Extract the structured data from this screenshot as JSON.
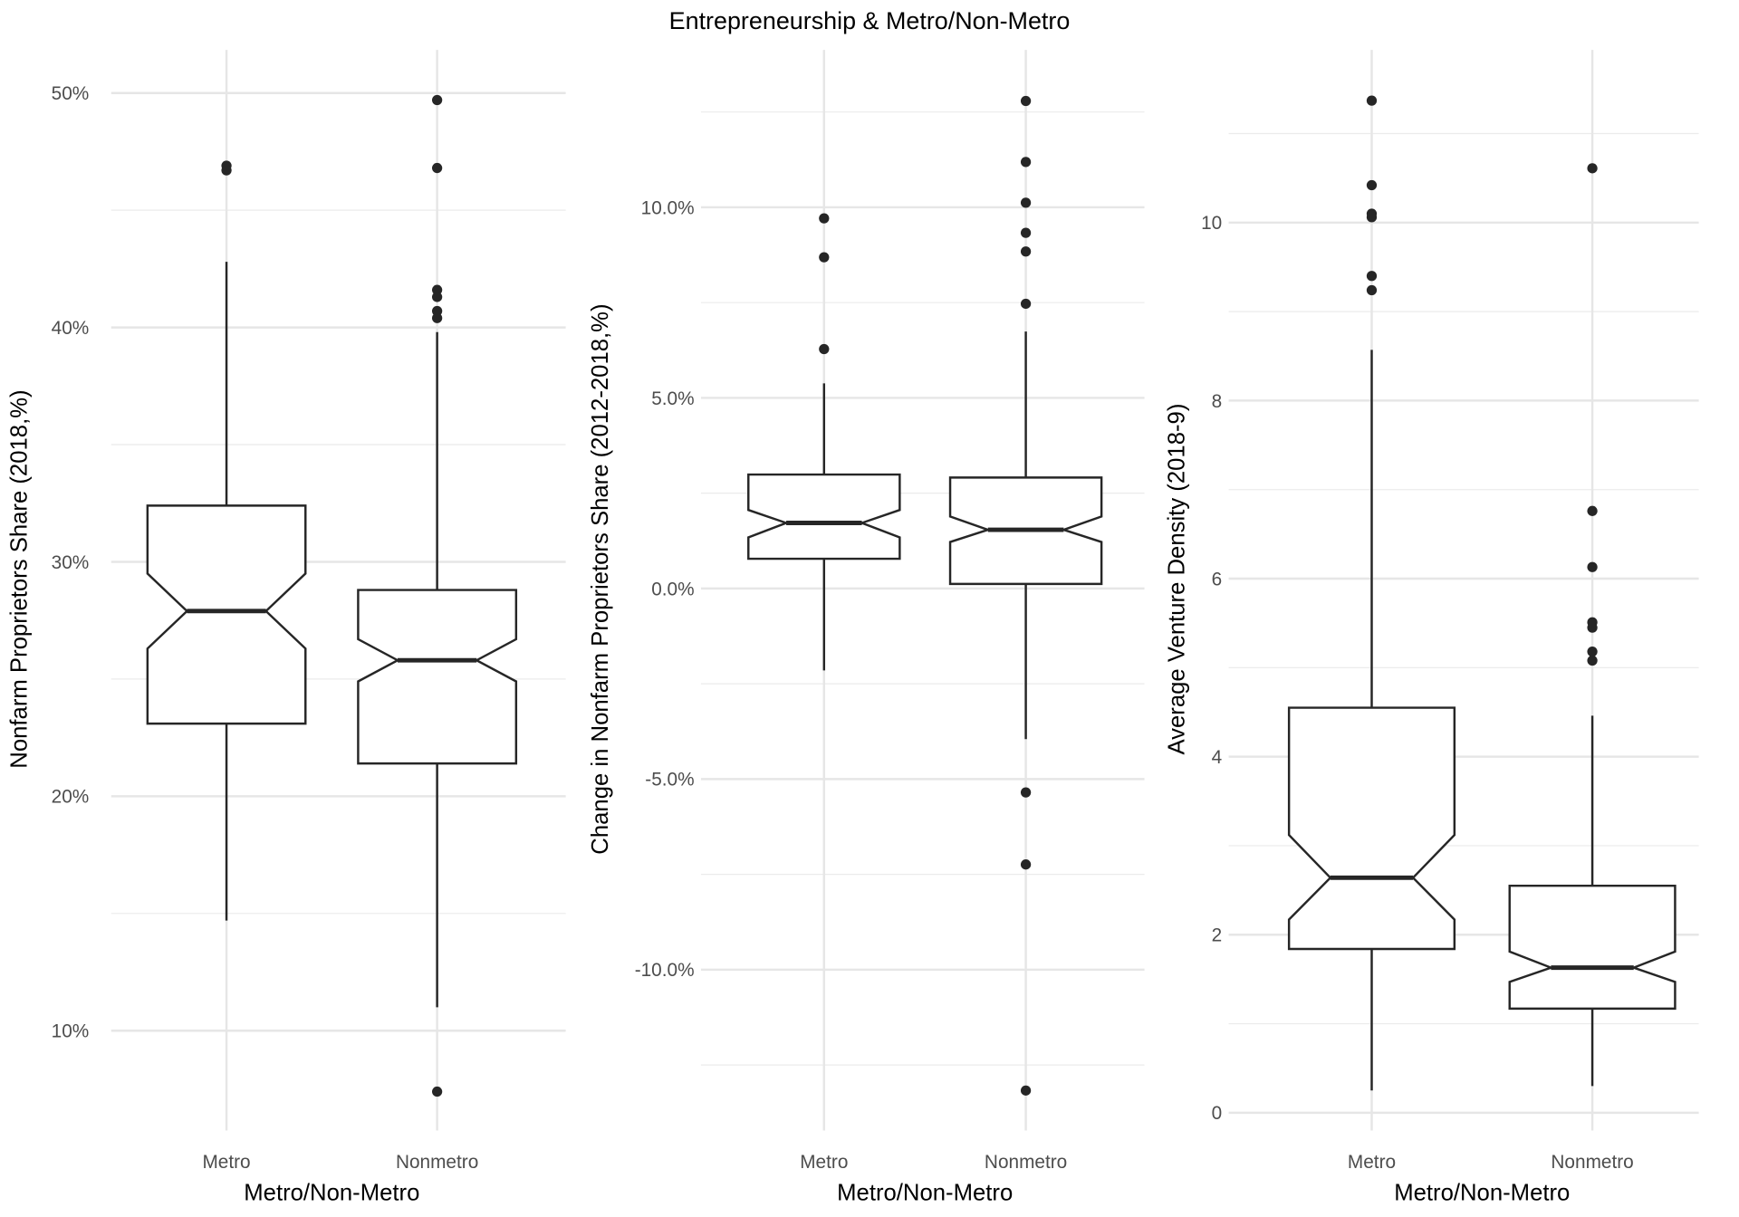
{
  "chart_data": {
    "title": "Entrepreneurship & Metro/Non-Metro",
    "panels": [
      {
        "type": "boxplot",
        "notched": true,
        "xlabel": "Metro/Non-Metro",
        "ylabel": "Nonfarm Proprietors Share (2018,%)",
        "categories": [
          "Metro",
          "Nonmetro"
        ],
        "ylim": [
          5.74,
          51.84
        ],
        "major_breaks": [
          10,
          20,
          30,
          40,
          50
        ],
        "tick_labels": [
          "10%",
          "20%",
          "30%",
          "40%",
          "50%"
        ],
        "minor_breaks": [
          15,
          25,
          35,
          45
        ],
        "boxes": [
          {
            "category": "Metro",
            "lower_whisker": 14.7,
            "q1": 23.1,
            "median": 27.9,
            "q3": 32.4,
            "upper_whisker": 42.8,
            "notch_lower": 26.3,
            "notch_upper": 29.5,
            "outliers": [
              46.9,
              46.7
            ]
          },
          {
            "category": "Nonmetro",
            "lower_whisker": 11.0,
            "q1": 21.4,
            "median": 25.8,
            "q3": 28.8,
            "upper_whisker": 39.8,
            "notch_lower": 24.9,
            "notch_upper": 26.7,
            "outliers": [
              49.7,
              46.8,
              41.6,
              41.3,
              40.7,
              40.4,
              7.4
            ]
          }
        ]
      },
      {
        "type": "boxplot",
        "notched": true,
        "xlabel": "Metro/Non-Metro",
        "ylabel": "Change in Nonfarm Proprietors Share (2012-2018,%)",
        "categories": [
          "Metro",
          "Nonmetro"
        ],
        "ylim": [
          -14.22,
          14.13
        ],
        "major_breaks": [
          -10,
          -5,
          0,
          5,
          10
        ],
        "tick_labels": [
          "-10.0%",
          "-5.0%",
          "0.0%",
          "5.0%",
          "10.0%"
        ],
        "minor_breaks": [
          -12.5,
          -7.5,
          -2.5,
          2.5,
          7.5,
          12.5
        ],
        "boxes": [
          {
            "category": "Metro",
            "lower_whisker": -2.15,
            "q1": 0.78,
            "median": 1.72,
            "q3": 2.99,
            "upper_whisker": 5.38,
            "notch_lower": 1.34,
            "notch_upper": 2.06,
            "outliers": [
              9.71,
              8.69,
              6.28
            ]
          },
          {
            "category": "Nonmetro",
            "lower_whisker": -3.95,
            "q1": 0.12,
            "median": 1.54,
            "q3": 2.91,
            "upper_whisker": 6.74,
            "notch_lower": 1.22,
            "notch_upper": 1.89,
            "outliers": [
              12.79,
              11.19,
              10.12,
              9.33,
              8.84,
              7.47,
              -5.35,
              -7.24,
              -13.17
            ]
          }
        ]
      },
      {
        "type": "boxplot",
        "notched": true,
        "xlabel": "Metro/Non-Metro",
        "ylabel": "Average Venture Density (2018-9)",
        "categories": [
          "Metro",
          "Nonmetro"
        ],
        "ylim": [
          -0.2,
          11.94
        ],
        "major_breaks": [
          0,
          2,
          4,
          6,
          8,
          10
        ],
        "tick_labels": [
          "0",
          "2",
          "4",
          "6",
          "8",
          "10"
        ],
        "minor_breaks": [
          1,
          3,
          5,
          7,
          9,
          11
        ],
        "boxes": [
          {
            "category": "Metro",
            "lower_whisker": 0.25,
            "q1": 1.84,
            "median": 2.64,
            "q3": 4.55,
            "upper_whisker": 8.57,
            "notch_lower": 2.17,
            "notch_upper": 3.12,
            "outliers": [
              11.37,
              10.42,
              10.1,
              10.06,
              9.4,
              9.24
            ]
          },
          {
            "category": "Nonmetro",
            "lower_whisker": 0.3,
            "q1": 1.17,
            "median": 1.63,
            "q3": 2.55,
            "upper_whisker": 4.46,
            "notch_lower": 1.47,
            "notch_upper": 1.81,
            "outliers": [
              10.61,
              6.76,
              6.13,
              5.51,
              5.45,
              5.18,
              5.08
            ]
          }
        ]
      }
    ]
  }
}
